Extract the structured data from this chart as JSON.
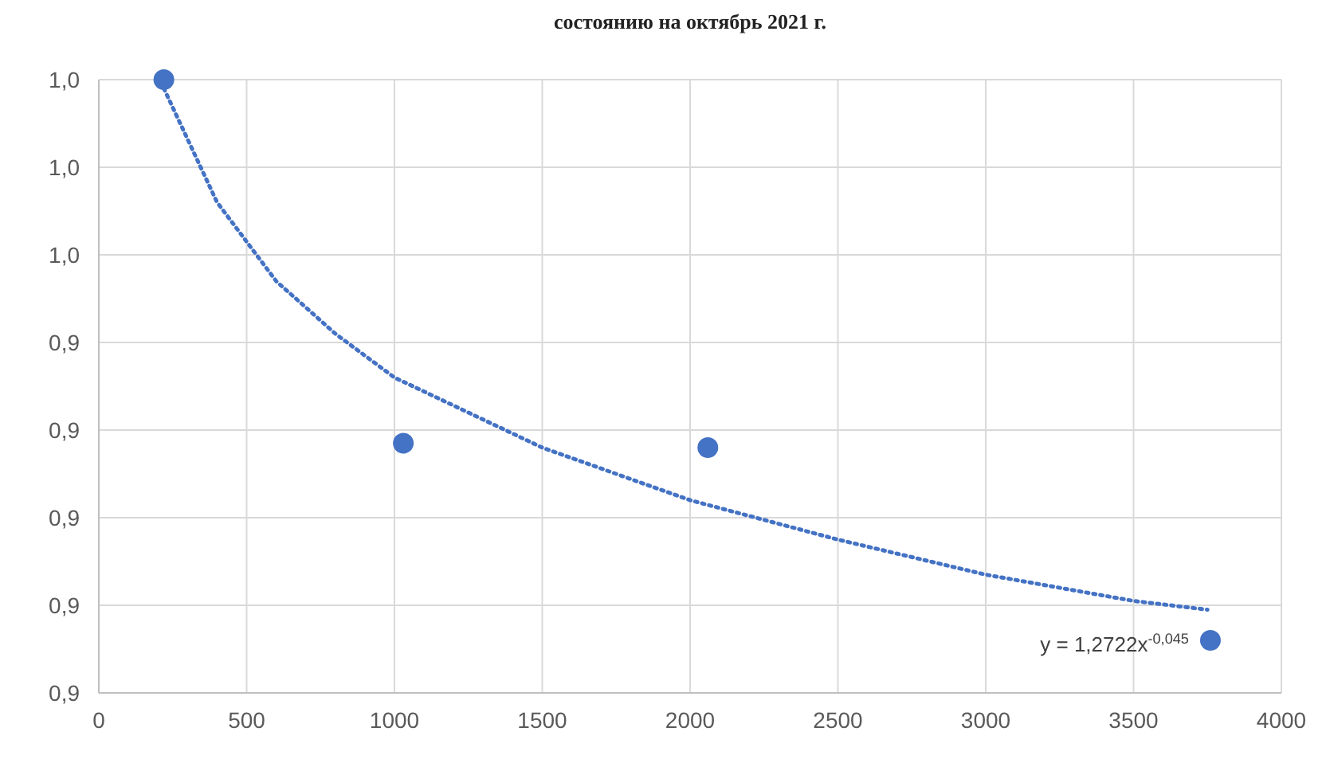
{
  "chart_data": {
    "type": "scatter",
    "title": "состоянию на октябрь 2021 г.",
    "series": [
      {
        "color": "#4472c4",
        "marker": "circle",
        "x": [
          220,
          1030,
          2060,
          3760
        ],
        "values": [
          1.0,
          0.917,
          0.916,
          0.872
        ]
      },
      {
        "type": "line",
        "color": "#4472c4",
        "line_style": "dotted",
        "marker": "none",
        "x": [
          220,
          400,
          600,
          800,
          1000,
          1500,
          2000,
          2500,
          3000,
          3500,
          3750
        ],
        "values": [
          0.998,
          0.972,
          0.954,
          0.942,
          0.932,
          0.916,
          0.904,
          0.895,
          0.887,
          0.881,
          0.879
        ]
      }
    ],
    "xlim": [
      0,
      4000
    ],
    "xticks": [
      0,
      500,
      1000,
      1500,
      2000,
      2500,
      3000,
      3500,
      4000
    ],
    "ylim": [
      0.86,
      1.0
    ],
    "yticks": [
      {
        "value": 0.86,
        "label": "0,9"
      },
      {
        "value": 0.88,
        "label": "0,9"
      },
      {
        "value": 0.9,
        "label": "0,9"
      },
      {
        "value": 0.92,
        "label": "0,9"
      },
      {
        "value": 0.94,
        "label": "0,9"
      },
      {
        "value": 0.96,
        "label": "1,0"
      },
      {
        "value": 0.98,
        "label": "1,0"
      },
      {
        "value": 1.0,
        "label": "1,0"
      }
    ],
    "grid": true,
    "annotations": [
      "y = 1,2722x$^{-0,045}$"
    ]
  }
}
